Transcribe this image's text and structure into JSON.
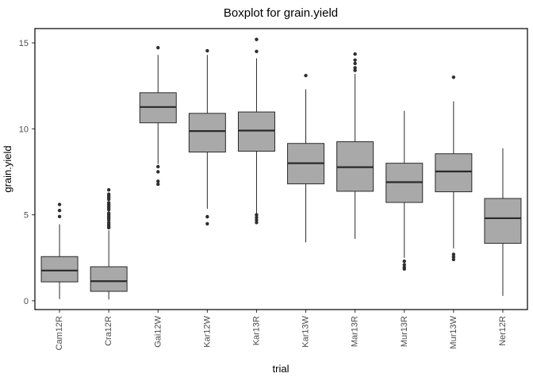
{
  "chart_data": {
    "type": "boxplot",
    "title": "Boxplot for grain.yield",
    "xlabel": "trial",
    "ylabel": "grain.yield",
    "ylim": [
      -0.51,
      15.83
    ],
    "y_ticks": [
      0,
      5,
      10,
      15
    ],
    "grid": false,
    "legend": null,
    "panel_border": true,
    "categories": [
      "Cam12R",
      "Cra12R",
      "Gai12W",
      "Kar12W",
      "Kar13R",
      "Kar13W",
      "Mar13R",
      "Mur13R",
      "Mur13W",
      "Ner12R"
    ],
    "boxes": [
      {
        "label": "Cam12R",
        "low": 0.1,
        "q1": 1.1,
        "median": 1.76,
        "q3": 2.57,
        "high": 4.45,
        "outliers": [
          4.9,
          5.25,
          5.6
        ]
      },
      {
        "label": "Cra12R",
        "low": 0.07,
        "q1": 0.55,
        "median": 1.14,
        "q3": 1.98,
        "high": 4.1,
        "outliers": [
          4.25,
          4.35,
          4.45,
          4.55,
          4.7,
          4.8,
          4.9,
          5.0,
          5.1,
          5.3,
          5.4,
          5.5,
          5.6,
          5.7,
          5.9,
          6.0,
          6.1,
          6.2,
          6.45
        ]
      },
      {
        "label": "Gai12W",
        "low": 7.95,
        "q1": 10.35,
        "median": 11.27,
        "q3": 12.1,
        "high": 14.3,
        "outliers": [
          6.78,
          6.95,
          7.5,
          7.8,
          14.72
        ]
      },
      {
        "label": "Kar12W",
        "low": 5.35,
        "q1": 8.65,
        "median": 9.87,
        "q3": 10.9,
        "high": 14.3,
        "outliers": [
          4.48,
          4.89,
          14.54
        ]
      },
      {
        "label": "Kar13R",
        "low": 5.1,
        "q1": 8.7,
        "median": 9.9,
        "q3": 10.98,
        "high": 14.1,
        "outliers": [
          4.55,
          4.7,
          4.85,
          5.0,
          14.5,
          15.2
        ]
      },
      {
        "label": "Kar13W",
        "low": 3.4,
        "q1": 6.8,
        "median": 8.0,
        "q3": 9.15,
        "high": 12.3,
        "outliers": [
          13.1
        ]
      },
      {
        "label": "Mar13R",
        "low": 3.6,
        "q1": 6.37,
        "median": 7.77,
        "q3": 9.25,
        "high": 13.2,
        "outliers": [
          13.4,
          13.55,
          13.8,
          14.0,
          14.35
        ]
      },
      {
        "label": "Mur13R",
        "low": 2.5,
        "q1": 5.72,
        "median": 6.9,
        "q3": 8.0,
        "high": 11.05,
        "outliers": [
          1.85,
          1.95,
          2.1,
          2.3
        ]
      },
      {
        "label": "Mur13W",
        "low": 3.05,
        "q1": 6.34,
        "median": 7.52,
        "q3": 8.55,
        "high": 11.6,
        "outliers": [
          2.4,
          2.55,
          2.7,
          13.0
        ]
      },
      {
        "label": "Ner12R",
        "low": 0.28,
        "q1": 3.34,
        "median": 4.8,
        "q3": 5.95,
        "high": 8.87,
        "outliers": []
      }
    ],
    "colors": {
      "background": "#ffffff",
      "box_fill": "#a9a9a9",
      "box_border": "#2a2a2a",
      "median_line": "#2a2a2a",
      "outlier": "#2f2f2f",
      "tick": "#333333",
      "axis_text": "#4d4d4d",
      "title_text": "#000000",
      "panel_border": "#000000"
    }
  }
}
